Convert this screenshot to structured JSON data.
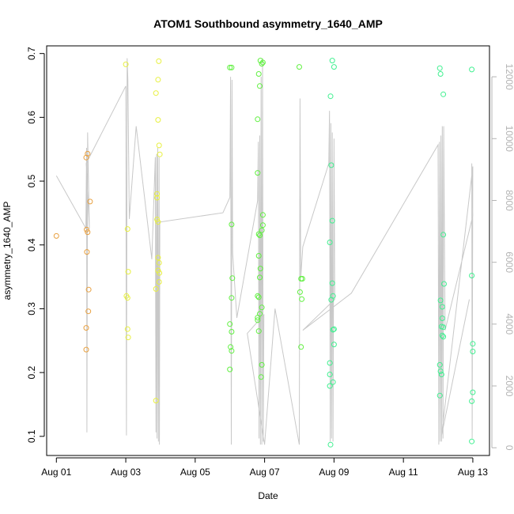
{
  "chart_data": {
    "type": "scatter",
    "title": "ATOM1 Southbound asymmetry_1640_AMP",
    "xlabel": "Date",
    "ylabel": "asymmetry_1640_AMP",
    "x_tick_labels": [
      "Aug 01",
      "Aug 03",
      "Aug 05",
      "Aug 07",
      "Aug 09",
      "Aug 11",
      "Aug 13"
    ],
    "x_tick_days": [
      1,
      3,
      5,
      7,
      9,
      11,
      13
    ],
    "x_range_days": [
      0.72,
      13.48
    ],
    "y_ticks": [
      0.1,
      0.2,
      0.3,
      0.4,
      0.5,
      0.6,
      0.7
    ],
    "y_tick_labels": [
      "0.1",
      "0.2",
      "0.3",
      "0.4",
      "0.5",
      "0.6",
      "0.7"
    ],
    "ylim": [
      0.07,
      0.712
    ],
    "y2_ticks": [
      0,
      2000,
      4000,
      6000,
      8000,
      10000,
      12000
    ],
    "y2_tick_labels": [
      "0",
      "2000",
      "4000",
      "6000",
      "8000",
      "10000",
      "12000"
    ],
    "y2lim": [
      -250,
      13000
    ],
    "colors": {
      "series": [
        "#e8a040",
        "#e8f040",
        "#60f040",
        "#40f090"
      ],
      "line": "#c8c8c8"
    },
    "series": [
      {
        "color": "#e8a040",
        "points": [
          {
            "day": 1.0,
            "y": 0.414
          },
          {
            "day": 1.86,
            "y": 0.537
          },
          {
            "day": 1.9,
            "y": 0.543
          },
          {
            "day": 1.87,
            "y": 0.424
          },
          {
            "day": 1.9,
            "y": 0.42
          },
          {
            "day": 1.97,
            "y": 0.468
          },
          {
            "day": 1.88,
            "y": 0.389
          },
          {
            "day": 1.93,
            "y": 0.33
          },
          {
            "day": 1.92,
            "y": 0.296
          },
          {
            "day": 1.86,
            "y": 0.27
          },
          {
            "day": 1.86,
            "y": 0.236
          }
        ]
      },
      {
        "color": "#e8f040",
        "points": [
          {
            "day": 3.0,
            "y": 0.683
          },
          {
            "day": 3.05,
            "y": 0.425
          },
          {
            "day": 3.07,
            "y": 0.358
          },
          {
            "day": 3.02,
            "y": 0.32
          },
          {
            "day": 3.05,
            "y": 0.317
          },
          {
            "day": 3.05,
            "y": 0.268
          },
          {
            "day": 3.07,
            "y": 0.255
          },
          {
            "day": 3.87,
            "y": 0.638
          },
          {
            "day": 3.95,
            "y": 0.688
          },
          {
            "day": 3.93,
            "y": 0.659
          },
          {
            "day": 3.93,
            "y": 0.596
          },
          {
            "day": 3.96,
            "y": 0.556
          },
          {
            "day": 3.98,
            "y": 0.542
          },
          {
            "day": 3.9,
            "y": 0.48
          },
          {
            "day": 3.9,
            "y": 0.474
          },
          {
            "day": 3.9,
            "y": 0.44
          },
          {
            "day": 3.93,
            "y": 0.436
          },
          {
            "day": 3.93,
            "y": 0.38
          },
          {
            "day": 3.96,
            "y": 0.372
          },
          {
            "day": 3.93,
            "y": 0.36
          },
          {
            "day": 3.97,
            "y": 0.356
          },
          {
            "day": 3.87,
            "y": 0.331
          },
          {
            "day": 3.96,
            "y": 0.342
          },
          {
            "day": 3.87,
            "y": 0.156
          }
        ]
      },
      {
        "color": "#60f040",
        "points": [
          {
            "day": 6.0,
            "y": 0.678
          },
          {
            "day": 6.05,
            "y": 0.678
          },
          {
            "day": 6.05,
            "y": 0.432
          },
          {
            "day": 6.07,
            "y": 0.348
          },
          {
            "day": 6.05,
            "y": 0.317
          },
          {
            "day": 6.0,
            "y": 0.276
          },
          {
            "day": 6.05,
            "y": 0.264
          },
          {
            "day": 6.02,
            "y": 0.24
          },
          {
            "day": 6.05,
            "y": 0.234
          },
          {
            "day": 6.0,
            "y": 0.205
          },
          {
            "day": 6.88,
            "y": 0.689
          },
          {
            "day": 6.92,
            "y": 0.684
          },
          {
            "day": 6.95,
            "y": 0.686
          },
          {
            "day": 6.83,
            "y": 0.668
          },
          {
            "day": 6.86,
            "y": 0.649
          },
          {
            "day": 6.8,
            "y": 0.597
          },
          {
            "day": 6.8,
            "y": 0.513
          },
          {
            "day": 6.95,
            "y": 0.447
          },
          {
            "day": 6.95,
            "y": 0.431
          },
          {
            "day": 6.92,
            "y": 0.423
          },
          {
            "day": 6.86,
            "y": 0.415
          },
          {
            "day": 6.83,
            "y": 0.417
          },
          {
            "day": 6.83,
            "y": 0.383
          },
          {
            "day": 6.88,
            "y": 0.363
          },
          {
            "day": 6.86,
            "y": 0.349
          },
          {
            "day": 6.8,
            "y": 0.32
          },
          {
            "day": 6.83,
            "y": 0.318
          },
          {
            "day": 6.92,
            "y": 0.302
          },
          {
            "day": 6.8,
            "y": 0.286
          },
          {
            "day": 6.8,
            "y": 0.282
          },
          {
            "day": 6.86,
            "y": 0.292
          },
          {
            "day": 6.83,
            "y": 0.265
          },
          {
            "day": 6.92,
            "y": 0.212
          },
          {
            "day": 6.9,
            "y": 0.193
          },
          {
            "day": 8.0,
            "y": 0.679
          },
          {
            "day": 8.05,
            "y": 0.347
          },
          {
            "day": 8.09,
            "y": 0.347
          },
          {
            "day": 8.02,
            "y": 0.326
          },
          {
            "day": 8.07,
            "y": 0.315
          },
          {
            "day": 8.05,
            "y": 0.24
          }
        ]
      },
      {
        "color": "#40f090",
        "points": [
          {
            "day": 8.95,
            "y": 0.689
          },
          {
            "day": 9.0,
            "y": 0.679
          },
          {
            "day": 8.9,
            "y": 0.633
          },
          {
            "day": 8.92,
            "y": 0.525
          },
          {
            "day": 8.95,
            "y": 0.438
          },
          {
            "day": 8.88,
            "y": 0.404
          },
          {
            "day": 8.95,
            "y": 0.34
          },
          {
            "day": 8.97,
            "y": 0.32
          },
          {
            "day": 8.92,
            "y": 0.314
          },
          {
            "day": 9.0,
            "y": 0.268
          },
          {
            "day": 8.97,
            "y": 0.267
          },
          {
            "day": 9.0,
            "y": 0.244
          },
          {
            "day": 8.88,
            "y": 0.215
          },
          {
            "day": 8.88,
            "y": 0.197
          },
          {
            "day": 8.97,
            "y": 0.185
          },
          {
            "day": 8.88,
            "y": 0.179
          },
          {
            "day": 8.9,
            "y": 0.087
          },
          {
            "day": 12.05,
            "y": 0.677
          },
          {
            "day": 12.07,
            "y": 0.668
          },
          {
            "day": 12.15,
            "y": 0.636
          },
          {
            "day": 12.15,
            "y": 0.416
          },
          {
            "day": 12.17,
            "y": 0.339
          },
          {
            "day": 12.07,
            "y": 0.313
          },
          {
            "day": 12.12,
            "y": 0.303
          },
          {
            "day": 12.12,
            "y": 0.285
          },
          {
            "day": 12.1,
            "y": 0.272
          },
          {
            "day": 12.15,
            "y": 0.271
          },
          {
            "day": 12.12,
            "y": 0.258
          },
          {
            "day": 12.15,
            "y": 0.256
          },
          {
            "day": 12.05,
            "y": 0.212
          },
          {
            "day": 12.07,
            "y": 0.202
          },
          {
            "day": 12.1,
            "y": 0.197
          },
          {
            "day": 12.05,
            "y": 0.164
          },
          {
            "day": 12.97,
            "y": 0.675
          },
          {
            "day": 12.97,
            "y": 0.352
          },
          {
            "day": 13.0,
            "y": 0.245
          },
          {
            "day": 13.0,
            "y": 0.233
          },
          {
            "day": 13.0,
            "y": 0.169
          },
          {
            "day": 12.97,
            "y": 0.155
          },
          {
            "day": 12.97,
            "y": 0.092
          }
        ]
      }
    ],
    "line_series": [
      {
        "day": 1.0,
        "v": 8800
      },
      {
        "day": 1.85,
        "v": 7100
      },
      {
        "day": 1.87,
        "v": 9700
      },
      {
        "day": 1.88,
        "v": 500
      },
      {
        "day": 1.9,
        "v": 10200
      },
      {
        "day": 1.93,
        "v": 8400
      },
      {
        "day": 1.95,
        "v": 7100
      },
      {
        "day": 1.86,
        "v": 9200
      },
      {
        "day": 3.0,
        "v": 11700
      },
      {
        "day": 3.02,
        "v": 400
      },
      {
        "day": 3.04,
        "v": 12600
      },
      {
        "day": 3.06,
        "v": 11900
      },
      {
        "day": 3.1,
        "v": 7400
      },
      {
        "day": 3.3,
        "v": 10400
      },
      {
        "day": 3.75,
        "v": 6100
      },
      {
        "day": 3.85,
        "v": 9400
      },
      {
        "day": 3.87,
        "v": 500
      },
      {
        "day": 3.89,
        "v": 9500
      },
      {
        "day": 3.9,
        "v": 300
      },
      {
        "day": 3.92,
        "v": 9700
      },
      {
        "day": 3.94,
        "v": 200
      },
      {
        "day": 3.96,
        "v": 9400
      },
      {
        "day": 3.97,
        "v": 100
      },
      {
        "day": 3.98,
        "v": 7300
      },
      {
        "day": 5.8,
        "v": 7600
      },
      {
        "day": 6.0,
        "v": 8100
      },
      {
        "day": 6.02,
        "v": 12000
      },
      {
        "day": 6.04,
        "v": 100
      },
      {
        "day": 6.06,
        "v": 11900
      },
      {
        "day": 6.08,
        "v": 6300
      },
      {
        "day": 6.2,
        "v": 4200
      },
      {
        "day": 6.8,
        "v": 8000
      },
      {
        "day": 6.82,
        "v": 9900
      },
      {
        "day": 6.84,
        "v": 300
      },
      {
        "day": 6.86,
        "v": 10100
      },
      {
        "day": 6.88,
        "v": 100
      },
      {
        "day": 6.9,
        "v": 12000
      },
      {
        "day": 6.92,
        "v": 100
      },
      {
        "day": 6.94,
        "v": 12600
      },
      {
        "day": 6.96,
        "v": 200
      },
      {
        "day": 6.98,
        "v": 4300
      },
      {
        "day": 6.5,
        "v": 3700
      },
      {
        "day": 7.0,
        "v": 100
      },
      {
        "day": 7.3,
        "v": 4500
      },
      {
        "day": 8.0,
        "v": 100
      },
      {
        "day": 8.02,
        "v": 11300
      },
      {
        "day": 8.04,
        "v": 5500
      },
      {
        "day": 8.1,
        "v": 6500
      },
      {
        "day": 8.85,
        "v": 9200
      },
      {
        "day": 8.87,
        "v": 10900
      },
      {
        "day": 8.89,
        "v": 200
      },
      {
        "day": 8.91,
        "v": 10500
      },
      {
        "day": 8.93,
        "v": 300
      },
      {
        "day": 8.95,
        "v": 10200
      },
      {
        "day": 8.97,
        "v": 200
      },
      {
        "day": 9.0,
        "v": 10000
      },
      {
        "day": 9.02,
        "v": 4800
      },
      {
        "day": 8.1,
        "v": 3800
      },
      {
        "day": 9.5,
        "v": 5000
      },
      {
        "day": 12.0,
        "v": 9800
      },
      {
        "day": 12.02,
        "v": 100
      },
      {
        "day": 12.04,
        "v": 9900
      },
      {
        "day": 12.06,
        "v": 200
      },
      {
        "day": 12.08,
        "v": 10100
      },
      {
        "day": 12.1,
        "v": 200
      },
      {
        "day": 12.12,
        "v": 10400
      },
      {
        "day": 12.14,
        "v": 300
      },
      {
        "day": 12.16,
        "v": 10400
      },
      {
        "day": 12.2,
        "v": 3800
      },
      {
        "day": 13.0,
        "v": 7500
      },
      {
        "day": 12.97,
        "v": 9200
      },
      {
        "day": 12.98,
        "v": 300
      },
      {
        "day": 13.0,
        "v": 9100
      },
      {
        "day": 12.1,
        "v": 400
      },
      {
        "day": 12.9,
        "v": 4800
      }
    ]
  }
}
